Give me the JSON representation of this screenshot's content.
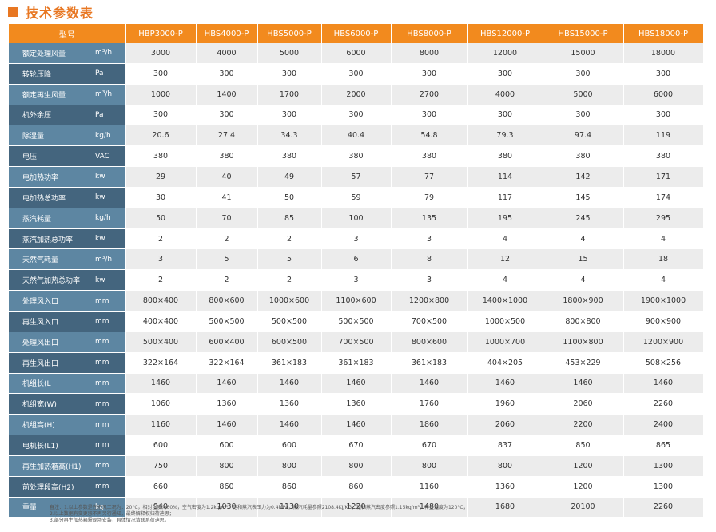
{
  "header": {
    "title": "技术参数表"
  },
  "table": {
    "type_label": "型号",
    "models": [
      "HBP3000-P",
      "HBS4000-P",
      "HBS5000-P",
      "HBS6000-P",
      "HBS8000-P",
      "HBS12000-P",
      "HBS15000-P",
      "HBS18000-P"
    ],
    "rows": [
      {
        "name": "额定处理风量",
        "unit": "m³/h",
        "values": [
          "3000",
          "4000",
          "5000",
          "6000",
          "8000",
          "12000",
          "15000",
          "18000"
        ]
      },
      {
        "name": "转轮压降",
        "unit": "Pa",
        "values": [
          "300",
          "300",
          "300",
          "300",
          "300",
          "300",
          "300",
          "300"
        ]
      },
      {
        "name": "额定再生风量",
        "unit": "m³/h",
        "values": [
          "1000",
          "1400",
          "1700",
          "2000",
          "2700",
          "4000",
          "5000",
          "6000"
        ]
      },
      {
        "name": "机外余压",
        "unit": "Pa",
        "values": [
          "300",
          "300",
          "300",
          "300",
          "300",
          "300",
          "300",
          "300"
        ]
      },
      {
        "name": "除湿量",
        "unit": "kg/h",
        "values": [
          "20.6",
          "27.4",
          "34.3",
          "40.4",
          "54.8",
          "79.3",
          "97.4",
          "119"
        ]
      },
      {
        "name": "电压",
        "unit": "VAC",
        "values": [
          "380",
          "380",
          "380",
          "380",
          "380",
          "380",
          "380",
          "380"
        ]
      },
      {
        "name": "电加热功率",
        "unit": "kw",
        "values": [
          "29",
          "40",
          "49",
          "57",
          "77",
          "114",
          "142",
          "171"
        ]
      },
      {
        "name": "电加热总功率",
        "unit": "kw",
        "values": [
          "30",
          "41",
          "50",
          "59",
          "79",
          "117",
          "145",
          "174"
        ]
      },
      {
        "name": "蒸汽耗量",
        "unit": "kg/h",
        "values": [
          "50",
          "70",
          "85",
          "100",
          "135",
          "195",
          "245",
          "295"
        ]
      },
      {
        "name": "蒸汽加热总功率",
        "unit": "kw",
        "values": [
          "2",
          "2",
          "2",
          "3",
          "3",
          "4",
          "4",
          "4"
        ]
      },
      {
        "name": "天然气耗量",
        "unit": "m³/h",
        "values": [
          "3",
          "5",
          "5",
          "6",
          "8",
          "12",
          "15",
          "18"
        ]
      },
      {
        "name": "天然气加热总功率",
        "unit": "kw",
        "values": [
          "2",
          "2",
          "2",
          "3",
          "3",
          "4",
          "4",
          "4"
        ]
      },
      {
        "name": "处理风入口",
        "unit": "mm",
        "values": [
          "800×400",
          "800×600",
          "1000×600",
          "1100×600",
          "1200×800",
          "1400×1000",
          "1800×900",
          "1900×1000"
        ]
      },
      {
        "name": "再生风入口",
        "unit": "mm",
        "values": [
          "400×400",
          "500×500",
          "500×500",
          "500×500",
          "700×500",
          "1000×500",
          "800×800",
          "900×900"
        ]
      },
      {
        "name": "处理风出口",
        "unit": "mm",
        "values": [
          "500×400",
          "600×400",
          "600×500",
          "700×500",
          "800×600",
          "1000×700",
          "1100×800",
          "1200×900"
        ]
      },
      {
        "name": "再生风出口",
        "unit": "mm",
        "values": [
          "322×164",
          "322×164",
          "361×183",
          "361×183",
          "361×183",
          "404×205",
          "453×229",
          "508×256"
        ]
      },
      {
        "name": "机组长(L",
        "unit": "mm",
        "values": [
          "1460",
          "1460",
          "1460",
          "1460",
          "1460",
          "1460",
          "1460",
          "1460"
        ]
      },
      {
        "name": "机组宽(W)",
        "unit": "mm",
        "values": [
          "1060",
          "1360",
          "1360",
          "1360",
          "1760",
          "1960",
          "2060",
          "2260"
        ]
      },
      {
        "name": "机组高(H)",
        "unit": "mm",
        "values": [
          "1160",
          "1460",
          "1460",
          "1460",
          "1860",
          "2060",
          "2200",
          "2400"
        ]
      },
      {
        "name": "电机长(L1)",
        "unit": "mm",
        "values": [
          "600",
          "600",
          "600",
          "670",
          "670",
          "837",
          "850",
          "865"
        ]
      },
      {
        "name": "再生加热箱高(H1)",
        "unit": "mm",
        "values": [
          "750",
          "800",
          "800",
          "800",
          "800",
          "800",
          "1200",
          "1300"
        ]
      },
      {
        "name": "前处理段高(H2)",
        "unit": "mm",
        "values": [
          "660",
          "860",
          "860",
          "860",
          "1160",
          "1360",
          "1200",
          "1300"
        ]
      },
      {
        "name": "重量",
        "unit": "kg",
        "values": [
          "940",
          "1030",
          "1130",
          "1220",
          "1480",
          "1680",
          "20100",
          "2260"
        ]
      }
    ]
  },
  "notes": {
    "line1": "备注：1.以上参数是在进风工况为：20°C，相对湿度为60%，空气密度为1.2kg/m³，饱和蒸汽表压力为0.4MPa，蒸汽耗量参照2108.4KJ/KG，饱和蒸汽密度参照1.15kg/m³，再生温度为120°C；",
    "line2": "2.以上数据有变更恕不再另行通知，最终解释权归荷迪思；",
    "line3": "3.部分再生加热箱需现场安装，具体情况请联系荷迪思。"
  },
  "colors": {
    "accent": "#f28a1e",
    "title": "#e87722",
    "label_dark": "#44657e",
    "label_light": "#5d86a2",
    "row_shade": "#ececec"
  }
}
